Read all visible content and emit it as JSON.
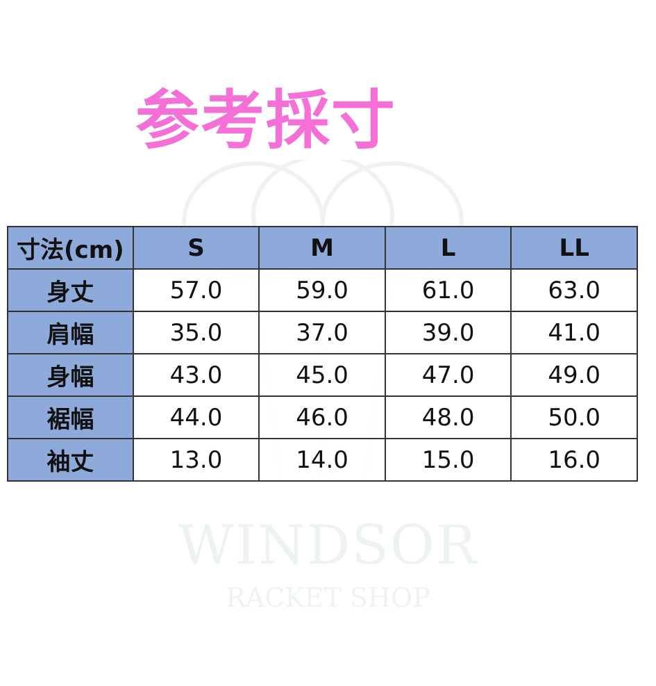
{
  "title": "参考採寸",
  "watermark": {
    "line1": "WINDSOR",
    "line2": "RACKET SHOP"
  },
  "colors": {
    "title": "#f46fd6",
    "header_bg": "#8eaadb"
  },
  "table": {
    "headers": [
      "寸法(cm)",
      "S",
      "M",
      "L",
      "LL"
    ],
    "rows": [
      {
        "label": "身丈",
        "values": [
          "57.0",
          "59.0",
          "61.0",
          "63.0"
        ]
      },
      {
        "label": "肩幅",
        "values": [
          "35.0",
          "37.0",
          "39.0",
          "41.0"
        ]
      },
      {
        "label": "身幅",
        "values": [
          "43.0",
          "45.0",
          "47.0",
          "49.0"
        ]
      },
      {
        "label": "裾幅",
        "values": [
          "44.0",
          "46.0",
          "48.0",
          "50.0"
        ]
      },
      {
        "label": "袖丈",
        "values": [
          "13.0",
          "14.0",
          "15.0",
          "16.0"
        ]
      }
    ]
  }
}
